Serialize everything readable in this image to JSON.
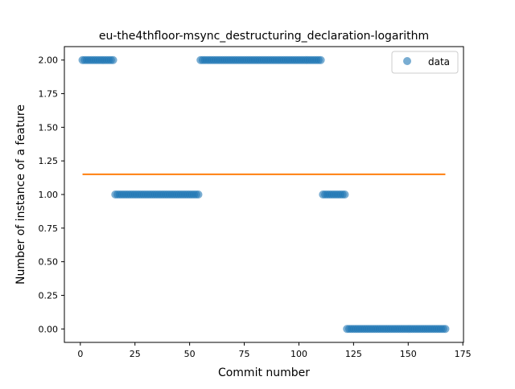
{
  "chart_data": {
    "type": "scatter",
    "title": "eu-the4thfloor-msync_destructuring_declaration-logarithm",
    "xlabel": "Commit number",
    "ylabel": "Number of instance of a feature",
    "xlim": [
      -7.3,
      175.3
    ],
    "ylim": [
      -0.1,
      2.1
    ],
    "x_ticks": [
      0,
      25,
      50,
      75,
      100,
      125,
      150,
      175
    ],
    "y_ticks": [
      0.0,
      0.25,
      0.5,
      0.75,
      1.0,
      1.25,
      1.5,
      1.75,
      2.0
    ],
    "x_tick_labels": [
      "0",
      "25",
      "50",
      "75",
      "100",
      "125",
      "150",
      "175"
    ],
    "y_tick_labels": [
      "0.00",
      "0.25",
      "0.50",
      "0.75",
      "1.00",
      "1.25",
      "1.50",
      "1.75",
      "2.00"
    ],
    "grid": false,
    "legend_position": "upper right",
    "series": [
      {
        "name": "data",
        "kind": "scatter",
        "color": "#1f77b4",
        "segments": [
          {
            "x_start": 1,
            "x_end": 15,
            "y": 2
          },
          {
            "x_start": 16,
            "x_end": 54,
            "y": 1
          },
          {
            "x_start": 55,
            "x_end": 110,
            "y": 2
          },
          {
            "x_start": 111,
            "x_end": 121,
            "y": 1
          },
          {
            "x_start": 122,
            "x_end": 167,
            "y": 0
          }
        ]
      },
      {
        "kind": "line",
        "color": "#ff7f0e",
        "points": [
          [
            1,
            1.15
          ],
          [
            167,
            1.15
          ]
        ]
      }
    ],
    "legend": [
      {
        "label": "data",
        "color": "#1f77b4"
      }
    ]
  }
}
